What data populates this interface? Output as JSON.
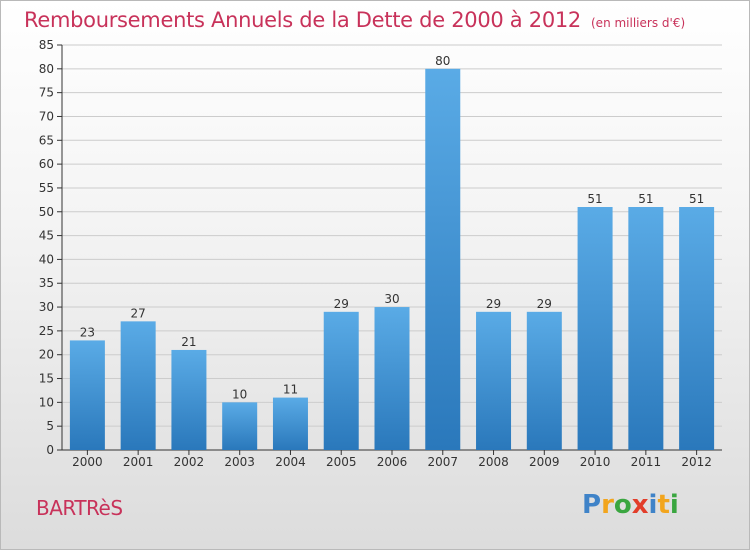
{
  "header": {
    "title": "Remboursements Annuels de la Dette de 2000 à 2012",
    "unit": "(en milliers d'€)"
  },
  "commune": "BARTRèS",
  "logo": {
    "text": "Proxiti"
  },
  "colors": {
    "title": "#c8325a",
    "bar_light": "#5aabe6",
    "bar_dark": "#2a78bb",
    "axis": "#333333",
    "grid": "#cccccc"
  },
  "chart_data": {
    "type": "bar",
    "title": "Remboursements Annuels de la Dette de 2000 à 2012",
    "subtitle": "(en milliers d'€)",
    "xlabel": "",
    "ylabel": "",
    "categories": [
      "2000",
      "2001",
      "2002",
      "2003",
      "2004",
      "2005",
      "2006",
      "2007",
      "2008",
      "2009",
      "2010",
      "2011",
      "2012"
    ],
    "values": [
      23,
      27,
      21,
      10,
      11,
      29,
      30,
      80,
      29,
      29,
      51,
      51,
      51
    ],
    "ylim": [
      0,
      85
    ],
    "yticks": [
      0,
      5,
      10,
      15,
      20,
      25,
      30,
      35,
      40,
      45,
      50,
      55,
      60,
      65,
      70,
      75,
      80,
      85
    ],
    "grid": "horizontal",
    "data_labels": true
  }
}
